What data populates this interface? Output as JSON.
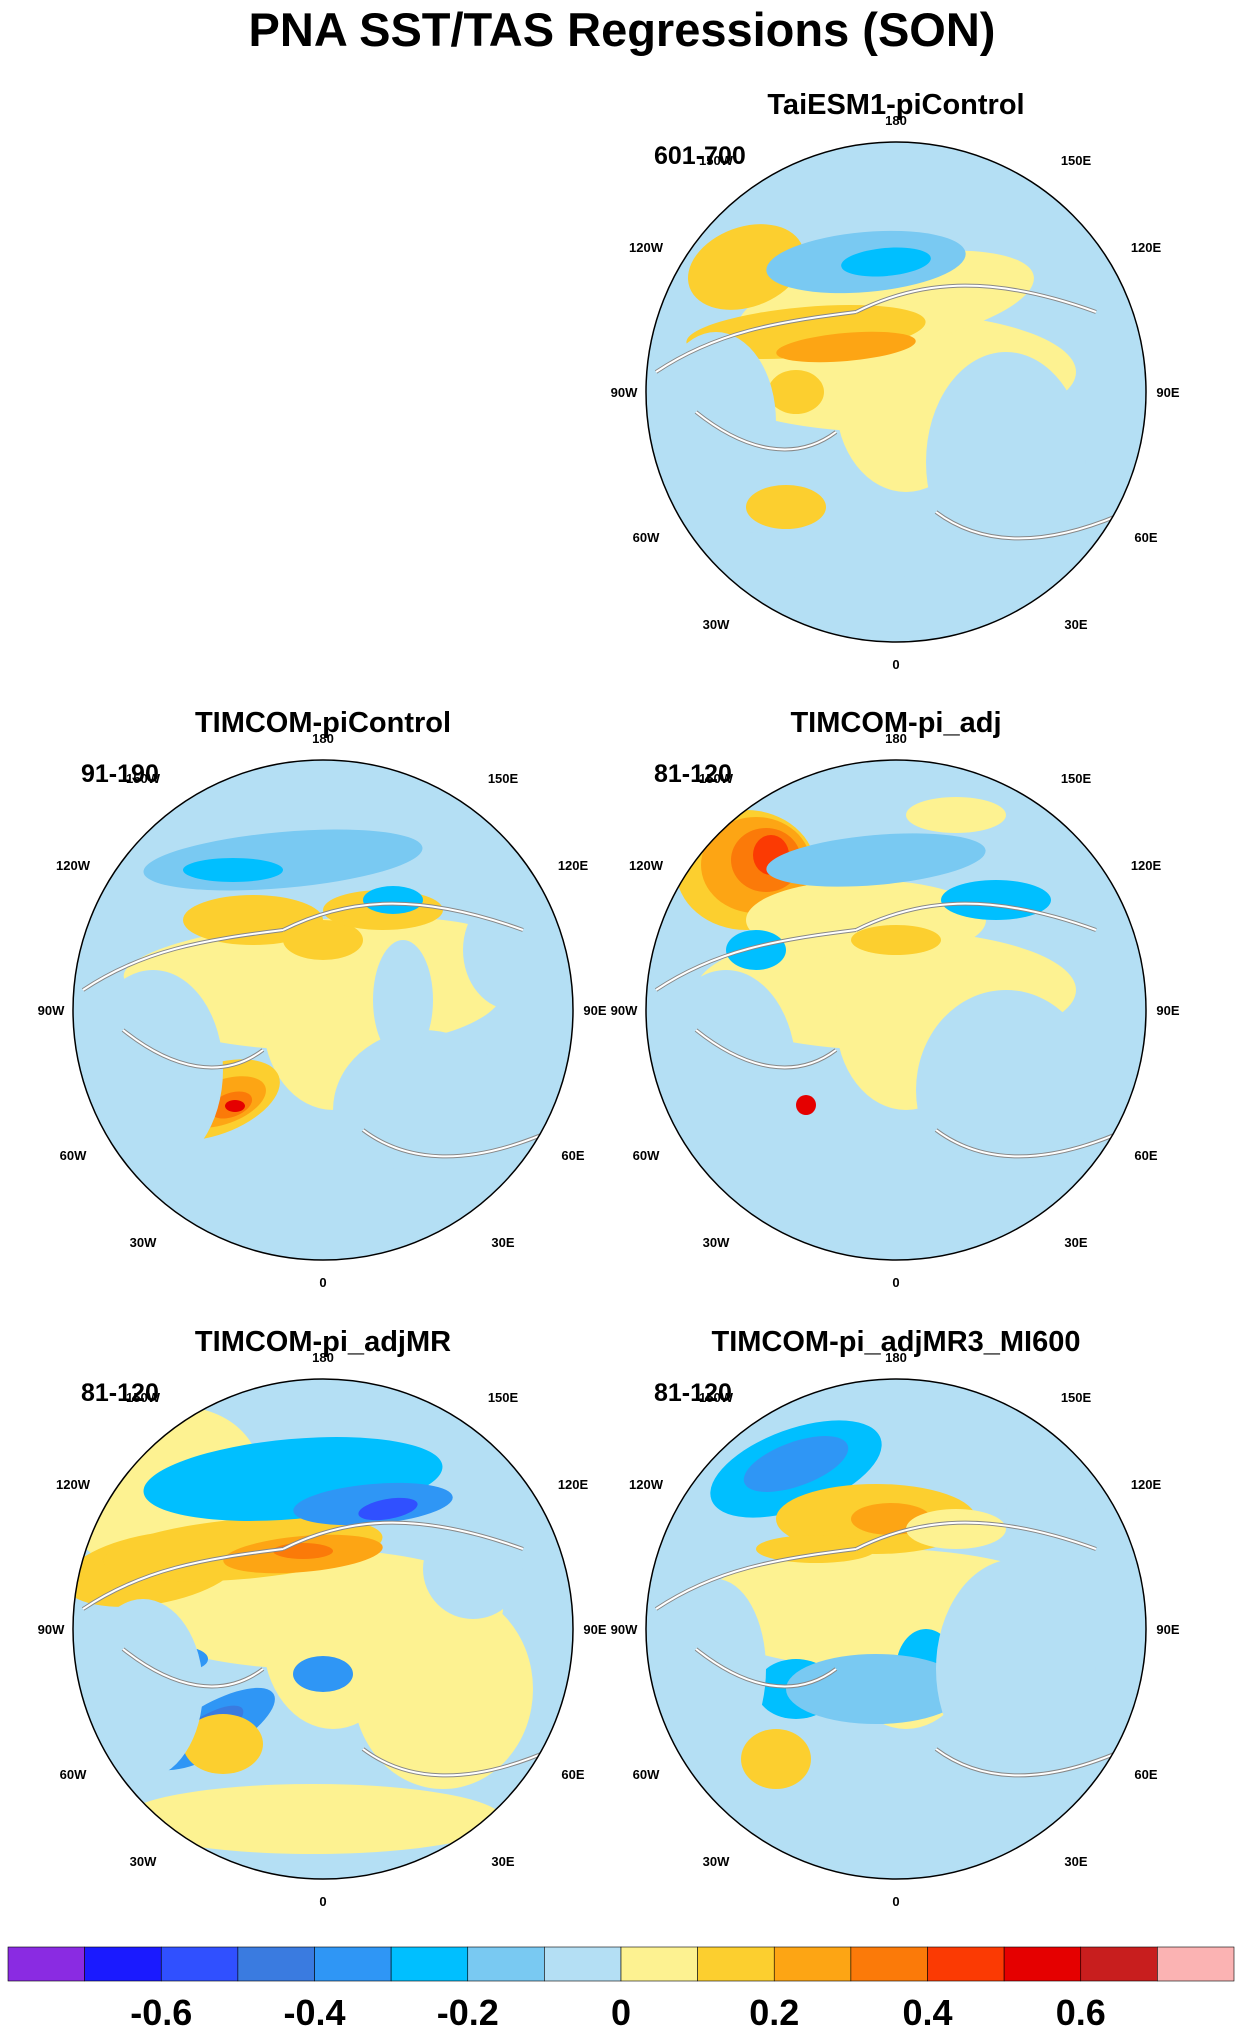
{
  "title": "PNA SST/TAS Regressions (SON)",
  "chart_data": {
    "type": "polar-stereographic contour maps",
    "variable": "PNA regression of SST/TAS",
    "season": "SON",
    "projection": "North Polar Stereographic",
    "longitude_labels": [
      "180",
      "150E",
      "120E",
      "90E",
      "60E",
      "30E",
      "0",
      "30W",
      "60W",
      "90W",
      "120W",
      "150W"
    ],
    "panels": [
      {
        "title": "TaiESM1-piControl",
        "years": "601-700",
        "position": "top-right"
      },
      {
        "title": "TIMCOM-piControl",
        "years": "91-190",
        "position": "middle-left"
      },
      {
        "title": "TIMCOM-pi_adj",
        "years": "81-120",
        "position": "middle-right"
      },
      {
        "title": "TIMCOM-pi_adjMR",
        "years": "81-120",
        "position": "bottom-left"
      },
      {
        "title": "TIMCOM-pi_adjMR3_MI600",
        "years": "81-120",
        "position": "bottom-right"
      }
    ],
    "colorbar": {
      "levels": [
        -0.7,
        -0.6,
        -0.5,
        -0.4,
        -0.3,
        -0.2,
        -0.1,
        0,
        0.1,
        0.2,
        0.3,
        0.4,
        0.5,
        0.6,
        0.7
      ],
      "tick_labels": [
        "-0.6",
        "-0.4",
        "-0.2",
        "0",
        "0.2",
        "0.4",
        "0.6"
      ],
      "tick_values": [
        -0.6,
        -0.4,
        -0.2,
        0,
        0.2,
        0.4,
        0.6
      ],
      "colors": [
        "#8a2be2",
        "#1a1aff",
        "#3050ff",
        "#3a7be0",
        "#2f96f5",
        "#00bfff",
        "#79c9f2",
        "#b4dff4",
        "#fdf291",
        "#fccf2f",
        "#fda514",
        "#fb7a09",
        "#fb3a03",
        "#e50000",
        "#c81e1e",
        "#fbb3b3"
      ]
    }
  }
}
